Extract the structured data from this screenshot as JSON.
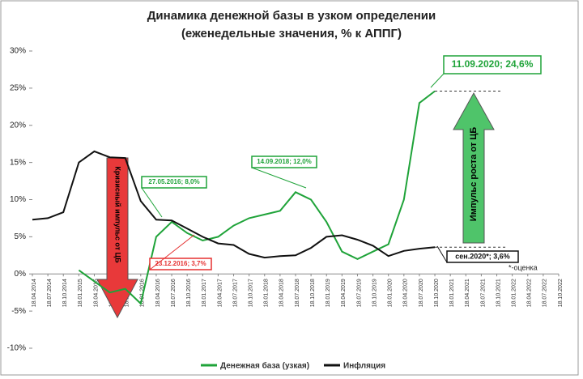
{
  "chart_data": {
    "type": "line",
    "title": [
      "Динамика денежной базы в узком определении",
      "(еженедельные значения, % к АППГ)"
    ],
    "categories": [
      "18.04.2014",
      "18.07.2014",
      "18.10.2014",
      "18.01.2015",
      "18.04.2015",
      "18.07.2015",
      "18.10.2015",
      "18.01.2016",
      "18.04.2016",
      "18.07.2016",
      "18.10.2016",
      "18.01.2017",
      "18.04.2017",
      "18.07.2017",
      "18.10.2017",
      "18.01.2018",
      "18.04.2018",
      "18.07.2018",
      "18.10.2018",
      "18.01.2019",
      "18.04.2019",
      "18.07.2019",
      "18.10.2019",
      "18.01.2020",
      "18.04.2020",
      "18.07.2020",
      "18.10.2020",
      "18.01.2021",
      "18.04.2021",
      "18.07.2021",
      "18.10.2021",
      "18.01.2022",
      "18.04.2022",
      "18.07.2022",
      "18.10.2022"
    ],
    "series": [
      {
        "name": "Денежная база (узкая)",
        "color": "#1fa339",
        "values": [
          null,
          null,
          null,
          0.5,
          -1,
          -2.5,
          -2,
          -4,
          5,
          7,
          5.5,
          4.5,
          5,
          6.5,
          7.5,
          8,
          8.5,
          11,
          10,
          7,
          3,
          2,
          3,
          4,
          10,
          23,
          24.6,
          null,
          null,
          null,
          null,
          null,
          null,
          null,
          null
        ]
      },
      {
        "name": "Инфляция",
        "color": "#111111",
        "values": [
          7.3,
          7.5,
          8.3,
          15,
          16.5,
          15.7,
          15.6,
          9.8,
          7.3,
          7.2,
          6.1,
          5,
          4.1,
          3.9,
          2.7,
          2.2,
          2.4,
          2.5,
          3.5,
          5,
          5.2,
          4.6,
          3.8,
          2.4,
          3.1,
          3.4,
          3.6,
          null,
          null,
          null,
          null,
          null,
          null,
          null,
          null
        ]
      }
    ],
    "ylim": [
      -10,
      30
    ],
    "yticks": [
      {
        "value": -10,
        "label": "-10%"
      },
      {
        "value": -5,
        "label": "-5%"
      },
      {
        "value": 0,
        "label": "0%"
      },
      {
        "value": 5,
        "label": "5%"
      },
      {
        "value": 10,
        "label": "10%"
      },
      {
        "value": 15,
        "label": "15%"
      },
      {
        "value": 20,
        "label": "20%"
      },
      {
        "value": 25,
        "label": "25%"
      },
      {
        "value": 30,
        "label": "30%"
      }
    ],
    "annotations": [
      "11.09.2020; 24,6%",
      "27.05.2016; 8,0%",
      "23.12.2016; 3,7%",
      "14.09.2018; 12,0%",
      "сен.2020*; 3,6%",
      "*-оценка",
      "Кризисный импульс от ЦБ",
      "Импульс роста от ЦБ"
    ],
    "legend": "bottom"
  }
}
